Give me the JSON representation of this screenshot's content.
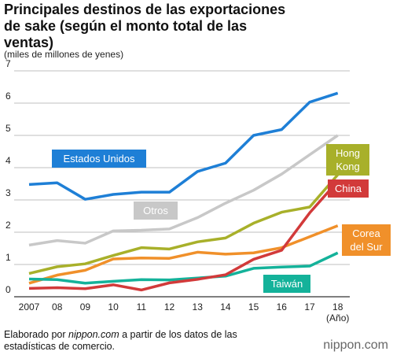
{
  "chart_data": {
    "type": "line",
    "title": "Principales destinos de las exportaciones de sake (según el monto total de las ventas)",
    "y_label": "(miles de millones de yenes)",
    "x_label": "(Año)",
    "categories": [
      "2007",
      "08",
      "09",
      "10",
      "11",
      "12",
      "13",
      "14",
      "15",
      "16",
      "17",
      "18"
    ],
    "ylim": [
      0,
      7
    ],
    "yticks": [
      0,
      1,
      2,
      3,
      4,
      5,
      6,
      7
    ],
    "grid": true,
    "series": [
      {
        "name": "Otros",
        "color": "#c8c8c8",
        "values": [
          1.6,
          1.74,
          1.66,
          2.04,
          2.06,
          2.1,
          2.45,
          2.9,
          3.3,
          3.8,
          4.4,
          5.0
        ]
      },
      {
        "name": "Estados Unidos",
        "color": "#1e7fd6",
        "values": [
          3.48,
          3.53,
          3.02,
          3.17,
          3.24,
          3.24,
          3.88,
          4.14,
          5.0,
          5.18,
          6.03,
          6.31
        ]
      },
      {
        "name": "Hong Kong",
        "color": "#a8b02a",
        "values": [
          0.72,
          0.93,
          1.02,
          1.28,
          1.52,
          1.48,
          1.7,
          1.82,
          2.28,
          2.62,
          2.78,
          3.78
        ]
      },
      {
        "name": "Corea del Sur",
        "color": "#f0902a",
        "values": [
          0.42,
          0.67,
          0.82,
          1.17,
          1.2,
          1.19,
          1.38,
          1.32,
          1.36,
          1.52,
          1.86,
          2.2
        ]
      },
      {
        "name": "Taiwán",
        "color": "#14b29a",
        "values": [
          0.55,
          0.53,
          0.42,
          0.48,
          0.53,
          0.52,
          0.58,
          0.64,
          0.88,
          0.92,
          0.95,
          1.36
        ]
      },
      {
        "name": "China",
        "color": "#d23a3a",
        "values": [
          0.26,
          0.28,
          0.25,
          0.37,
          0.21,
          0.43,
          0.54,
          0.68,
          1.16,
          1.44,
          2.6,
          3.58
        ]
      }
    ],
    "source": [
      "Elaborado por ",
      "nippon.com",
      " a partir de los datos de las estadísticas de comercio."
    ],
    "logo": "nippon.com"
  }
}
